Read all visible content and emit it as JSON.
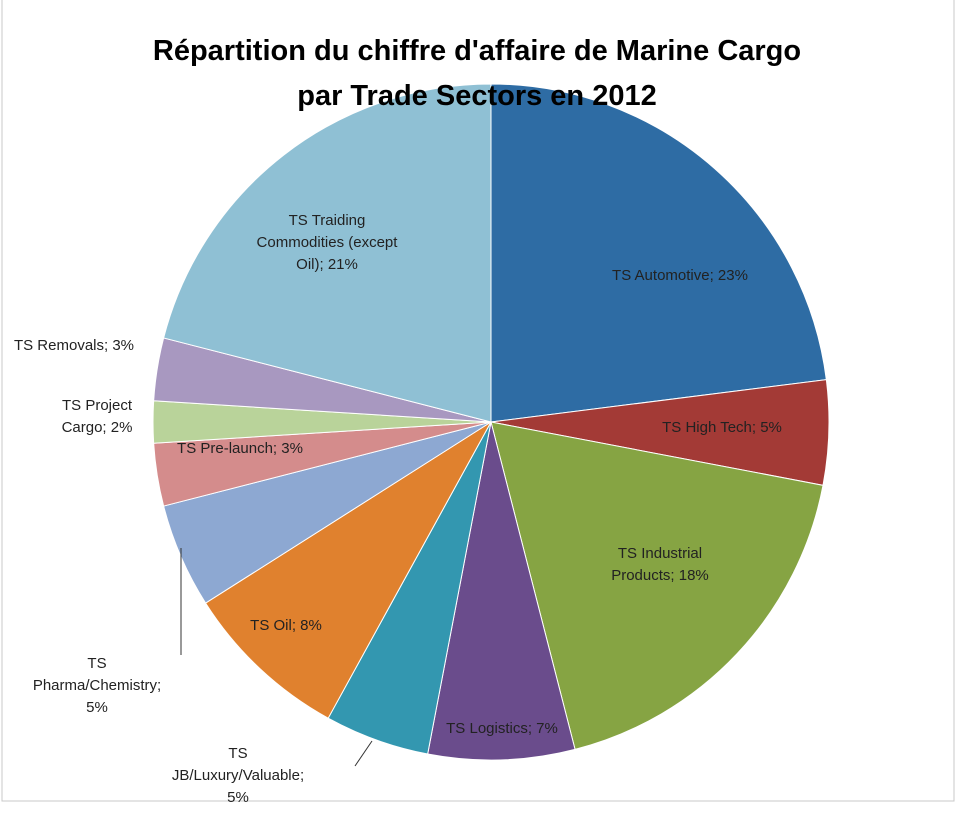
{
  "chart_data": {
    "type": "pie",
    "title": [
      "Répartition du chiffre d'affaire de Marine Cargo",
      "par Trade Sectors en 2012"
    ],
    "values": [
      23,
      5,
      18,
      7,
      5,
      8,
      5,
      3,
      2,
      3,
      21
    ],
    "value_labels": [
      "TS Automotive; 23%",
      "TS High Tech; 5%",
      "TS Industrial Products; 18%",
      "TS Logistics; 7%",
      "TS JB/Luxury/Valuable; 5%",
      "TS Oil; 8%",
      "TS Pharma/Chemistry; 5%",
      "TS Pre-launch; 3%",
      "TS Project Cargo; 2%",
      "TS Removals; 3%",
      "TS Traiding Commodities (except Oil); 21%"
    ],
    "colors": [
      "#2e6ca4",
      "#a33a36",
      "#86a443",
      "#6a4c8c",
      "#3397b0",
      "#e0812e",
      "#8da8d2",
      "#d48c8c",
      "#b9d39a",
      "#a898c0",
      "#8fc0d4"
    ]
  }
}
